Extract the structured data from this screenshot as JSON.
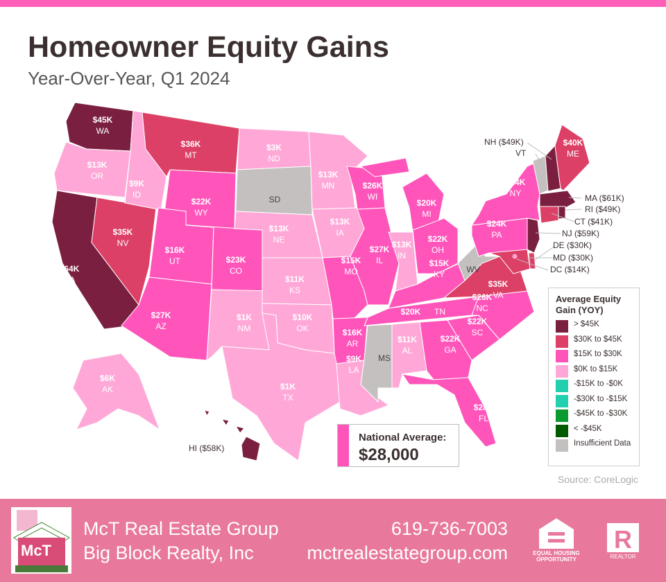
{
  "title": "Homeowner Equity Gains",
  "subtitle": "Year-Over-Year, Q1 2024",
  "colors": {
    "gt45": "#7a1f3f",
    "30to45": "#dc4066",
    "15to30": "#ff55bb",
    "0to15": "#ffa8d8",
    "neg0to15": "#22d0b0",
    "neg15to30": "#22d0b0",
    "neg30to45": "#0a9a30",
    "ltneg45": "#005a00",
    "na": "#c4c0bf"
  },
  "legend": {
    "title": "Average Equity Gain (YOY)",
    "items": [
      {
        "key": "gt45",
        "label": "> $45K"
      },
      {
        "key": "30to45",
        "label": "$30K to $45K"
      },
      {
        "key": "15to30",
        "label": "$15K to $30K"
      },
      {
        "key": "0to15",
        "label": "$0K to $15K"
      },
      {
        "key": "neg0to15",
        "label": "-$15K to -$0K"
      },
      {
        "key": "neg15to30",
        "label": "-$30K to -$15K"
      },
      {
        "key": "neg30to45",
        "label": "-$45K to -$30K"
      },
      {
        "key": "ltneg45",
        "label": "< -$45K"
      },
      {
        "key": "na",
        "label": "Insufficient Data"
      }
    ]
  },
  "states": {
    "WA": {
      "value": "$45K",
      "cat": "gt45"
    },
    "OR": {
      "value": "$13K",
      "cat": "0to15"
    },
    "CA": {
      "value": "$64K",
      "cat": "gt45"
    },
    "NV": {
      "value": "$35K",
      "cat": "30to45"
    },
    "ID": {
      "value": "$9K",
      "cat": "0to15"
    },
    "MT": {
      "value": "$36K",
      "cat": "30to45"
    },
    "WY": {
      "value": "$22K",
      "cat": "15to30"
    },
    "UT": {
      "value": "$16K",
      "cat": "15to30"
    },
    "AZ": {
      "value": "$27K",
      "cat": "15to30"
    },
    "CO": {
      "value": "$23K",
      "cat": "15to30"
    },
    "NM": {
      "value": "$1K",
      "cat": "0to15"
    },
    "ND": {
      "value": "$3K",
      "cat": "0to15"
    },
    "SD": {
      "value": "",
      "cat": "na"
    },
    "NE": {
      "value": "$13K",
      "cat": "0to15"
    },
    "KS": {
      "value": "$11K",
      "cat": "0to15"
    },
    "OK": {
      "value": "$10K",
      "cat": "0to15"
    },
    "TX": {
      "value": "$1K",
      "cat": "0to15"
    },
    "MN": {
      "value": "$13K",
      "cat": "0to15"
    },
    "IA": {
      "value": "$13K",
      "cat": "0to15"
    },
    "MO": {
      "value": "$15K",
      "cat": "15to30"
    },
    "AR": {
      "value": "$16K",
      "cat": "15to30"
    },
    "LA": {
      "value": "$9K",
      "cat": "0to15"
    },
    "WI": {
      "value": "$26K",
      "cat": "15to30"
    },
    "IL": {
      "value": "$27K",
      "cat": "15to30"
    },
    "MI": {
      "value": "$20K",
      "cat": "15to30"
    },
    "IN": {
      "value": "$13K",
      "cat": "0to15"
    },
    "OH": {
      "value": "$22K",
      "cat": "15to30"
    },
    "KY": {
      "value": "$15K",
      "cat": "15to30"
    },
    "TN": {
      "value": "$20K",
      "cat": "15to30"
    },
    "MS": {
      "value": "",
      "cat": "na"
    },
    "AL": {
      "value": "$11K",
      "cat": "0to15"
    },
    "GA": {
      "value": "$22K",
      "cat": "15to30"
    },
    "FL": {
      "value": "$28K",
      "cat": "15to30"
    },
    "SC": {
      "value": "$22K",
      "cat": "15to30"
    },
    "NC": {
      "value": "$26K",
      "cat": "15to30"
    },
    "VA": {
      "value": "$35K",
      "cat": "30to45"
    },
    "WV": {
      "value": "",
      "cat": "na"
    },
    "PA": {
      "value": "$24K",
      "cat": "15to30"
    },
    "NY": {
      "value": "$24K",
      "cat": "15to30"
    },
    "VT": {
      "value": "",
      "cat": "na"
    },
    "NH": {
      "value": "$49K",
      "cat": "gt45"
    },
    "ME": {
      "value": "$40K",
      "cat": "30to45"
    },
    "MA": {
      "value": "$61K",
      "cat": "gt45"
    },
    "RI": {
      "value": "$49K",
      "cat": "gt45"
    },
    "CT": {
      "value": "$41K",
      "cat": "30to45"
    },
    "NJ": {
      "value": "$59K",
      "cat": "gt45"
    },
    "DE": {
      "value": "$30K",
      "cat": "30to45"
    },
    "MD": {
      "value": "$30K",
      "cat": "30to45"
    },
    "DC": {
      "value": "$14K",
      "cat": "0to15"
    },
    "AK": {
      "value": "$6K",
      "cat": "0to15"
    },
    "HI": {
      "value": "$58K",
      "cat": "gt45"
    }
  },
  "callouts": {
    "NH": "NH ($49K)",
    "VT": "VT",
    "MA": "MA ($61K)",
    "RI": "RI ($49K)",
    "CT": "CT ($41K)",
    "NJ": "NJ ($59K)",
    "DE": "DE ($30K)",
    "MD": "MD ($30K)",
    "DC": "DC ($14K)",
    "HI": "HI ($58K)"
  },
  "national": {
    "label": "National Average:",
    "value": "$28,000"
  },
  "source": "Source: CoreLogic",
  "footer": {
    "company": "McT Real Estate Group",
    "brokerage": "Big Block Realty, Inc",
    "phone": "619-736-7003",
    "website": "mctrealestategroup.com",
    "eho": "EQUAL HOUSING OPPORTUNITY",
    "realtor": "REALTOR"
  }
}
